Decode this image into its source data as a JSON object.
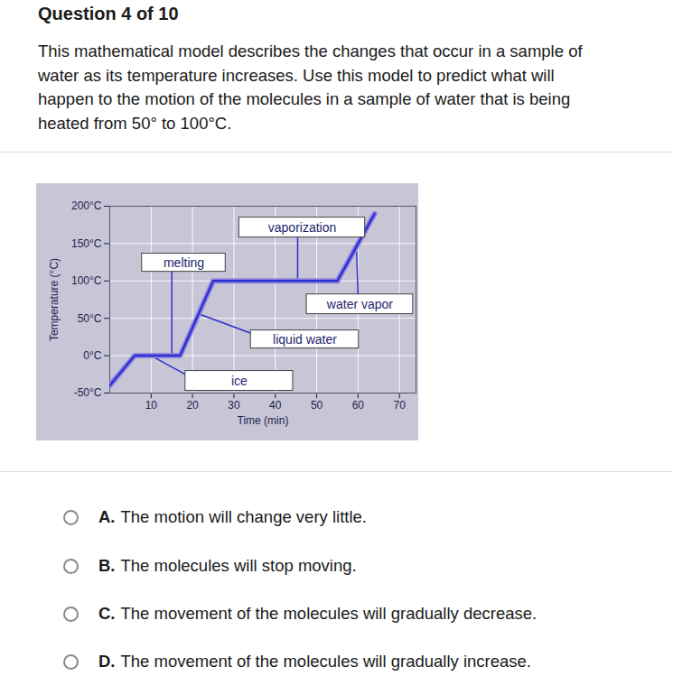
{
  "header": {
    "title": "Question 4 of 10"
  },
  "question": {
    "lines": [
      "This mathematical model describes the changes that occur in a sample of",
      "water as its temperature increases. Use this model to predict what will",
      "happen to the motion of the molecules in a sample of water that is being",
      "heated from 50° to 100°C."
    ]
  },
  "chart_data": {
    "type": "line",
    "x_label": "Time (min)",
    "y_label": "Temperature (°C)",
    "x": [
      0,
      6,
      17,
      25,
      55,
      64
    ],
    "values": [
      -40,
      0,
      0,
      100,
      100,
      190
    ],
    "color": "#2f2fd0",
    "xlim": [
      0,
      74
    ],
    "ylim": [
      -50,
      200
    ],
    "xticks": [
      10,
      20,
      30,
      40,
      50,
      60,
      70
    ],
    "yticks": [
      {
        "value": -50,
        "label": "-50°C"
      },
      {
        "value": 0,
        "label": "0°C"
      },
      {
        "value": 50,
        "label": "50°C"
      },
      {
        "value": 100,
        "label": "100°C"
      },
      {
        "value": 150,
        "label": "150°C"
      },
      {
        "value": 200,
        "label": "200°C"
      }
    ],
    "grid": true,
    "annotations": [
      "vaporization",
      "melting",
      "water vapor",
      "liquid water",
      "ice"
    ]
  },
  "options": [
    {
      "letter": "A.",
      "text": "The motion will change very little."
    },
    {
      "letter": "B.",
      "text": "The molecules will stop moving."
    },
    {
      "letter": "C.",
      "text": "The movement of the molecules will gradually decrease."
    },
    {
      "letter": "D.",
      "text": "The movement of the molecules will gradually increase."
    }
  ]
}
